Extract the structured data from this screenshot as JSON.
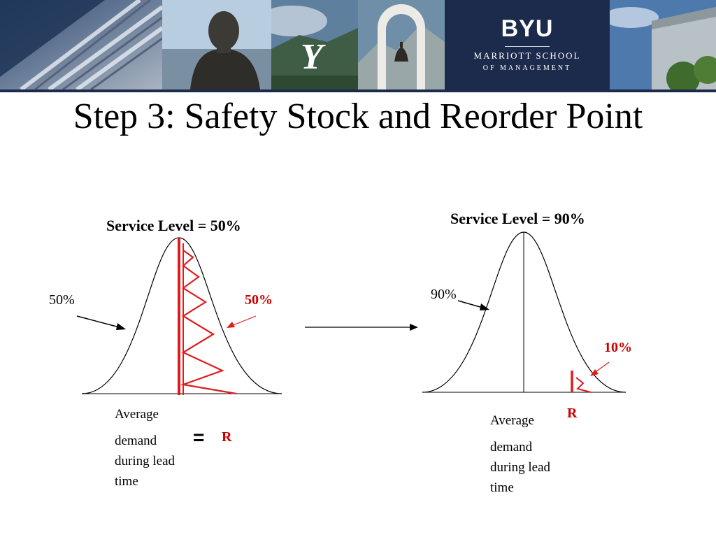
{
  "banner": {
    "logo": {
      "wordmark": "BYU",
      "school": "MARRIOTT SCHOOL",
      "department": "OF MANAGEMENT"
    },
    "colors": {
      "navy": "#1c2b4c",
      "sky": "#4a78a8"
    }
  },
  "slide": {
    "title": "Step 3: Safety Stock and Reorder Point"
  },
  "left_chart": {
    "heading": "Service Level = 50%",
    "left_area_label": "50%",
    "right_area_label": "50%",
    "axis_caption_lines": [
      "Average",
      "demand",
      "during lead",
      "time"
    ],
    "equals": "=",
    "reorder_label": "R"
  },
  "right_chart": {
    "heading": "Service Level = 90%",
    "left_area_label": "90%",
    "tail_area_label": "10%",
    "axis_caption_lines": [
      "Average",
      "demand",
      "during lead",
      "time"
    ],
    "reorder_label": "R"
  },
  "colors": {
    "highlight": "#cc0000",
    "curve": "#000000"
  }
}
